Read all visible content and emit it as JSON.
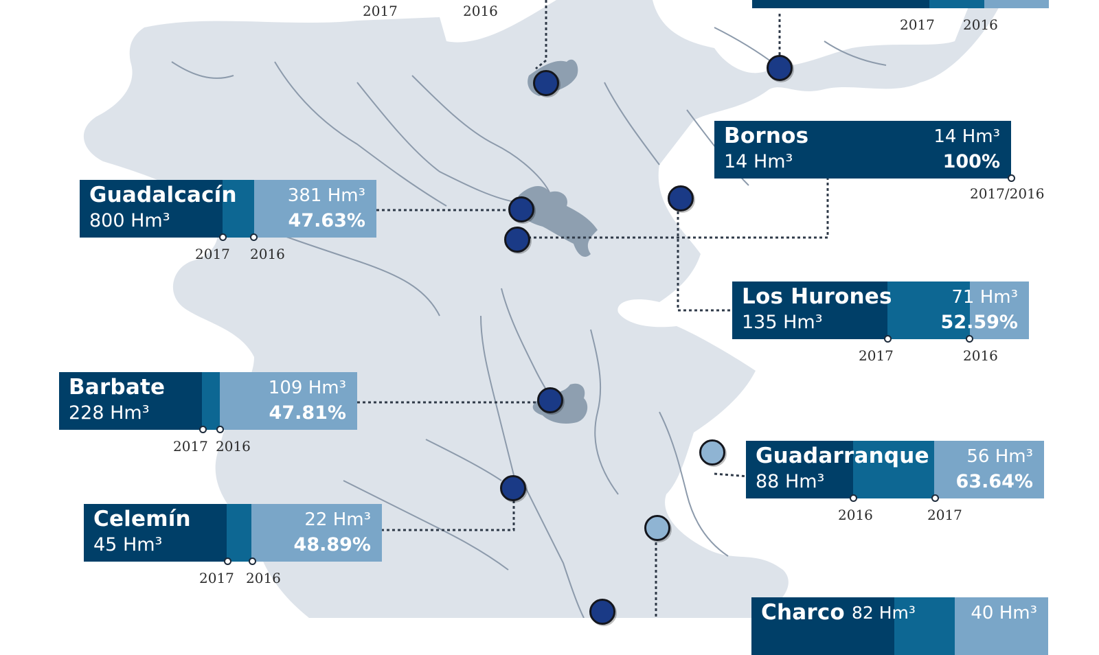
{
  "reservoirs": {
    "guadalcacin": {
      "name": "Guadalcacín",
      "capacity": "800 Hm³",
      "stored": "381 Hm³",
      "percent": "47.63%",
      "year_a": "2017",
      "year_b": "2016"
    },
    "bornos": {
      "name": "Bornos",
      "capacity": "14 Hm³",
      "stored": "14 Hm³",
      "percent": "100%",
      "years": "2017/2016"
    },
    "los_hurones": {
      "name": "Los Hurones",
      "capacity": "135 Hm³",
      "stored": "71 Hm³",
      "percent": "52.59%",
      "year_a": "2017",
      "year_b": "2016"
    },
    "barbate": {
      "name": "Barbate",
      "capacity": "228 Hm³",
      "stored": "109 Hm³",
      "percent": "47.81%",
      "year_a": "2017",
      "year_b": "2016"
    },
    "guadarranque": {
      "name": "Guadarranque",
      "capacity": "88 Hm³",
      "stored": "56 Hm³",
      "percent": "63.64%",
      "year_a": "2016",
      "year_b": "2017"
    },
    "celemin": {
      "name": "Celemín",
      "capacity": "45 Hm³",
      "stored": "22 Hm³",
      "percent": "48.89%",
      "year_a": "2017",
      "year_b": "2016"
    },
    "charco": {
      "name": "Charco",
      "capacity": "82 Hm³",
      "stored": "40 Hm³"
    }
  },
  "top_years": {
    "left_a": "2017",
    "left_b": "2016",
    "right_a": "2017",
    "right_b": "2016"
  },
  "colors": {
    "land": "#dde3ea",
    "river": "#8c9aab",
    "reservoir_water": "#8e9fb0",
    "panel_dark": "#003f68",
    "panel_mid": "#0d6793",
    "panel_light": "#7aa6c8",
    "dot_dark": "#1a3a86",
    "dot_light": "#8fb4d3"
  }
}
